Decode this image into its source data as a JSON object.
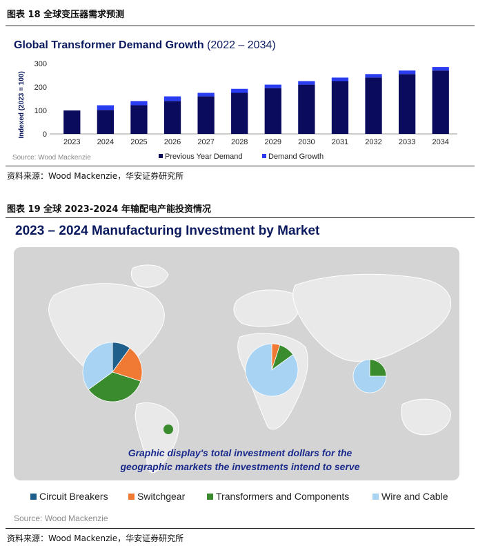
{
  "figure1": {
    "caption": "图表 18 全球变压器需求预测",
    "source": "资料来源：Wood Mackenzie，华安证券研究所"
  },
  "figure2": {
    "caption": "图表 19 全球 2023-2024 年输配电产能投资情况",
    "source": "资料来源：Wood Mackenzie，华安证券研究所"
  },
  "chart_data": [
    {
      "type": "bar",
      "stacked": true,
      "title": "Global Transformer Demand Growth",
      "title_suffix": "(2022 – 2034)",
      "ylabel": "Indexed (2023 = 100)",
      "xlabel": "",
      "ylim": [
        0,
        300
      ],
      "yticks": [
        0,
        100,
        200,
        300
      ],
      "categories": [
        "2023",
        "2024",
        "2025",
        "2026",
        "2027",
        "2028",
        "2029",
        "2030",
        "2031",
        "2032",
        "2033",
        "2034"
      ],
      "series": [
        {
          "name": "Previous Year Demand",
          "color": "#0b0b5e",
          "values": [
            100,
            102,
            122,
            140,
            160,
            175,
            195,
            210,
            225,
            240,
            255,
            270
          ]
        },
        {
          "name": "Demand Growth",
          "color": "#2a3cf0",
          "values": [
            0,
            20,
            18,
            20,
            15,
            17,
            15,
            15,
            15,
            15,
            15,
            15
          ]
        }
      ],
      "source": "Source: Wood Mackenzie",
      "legend_position": "bottom"
    },
    {
      "type": "pie",
      "title": "2023 – 2024 Manufacturing Investment by Market",
      "categories": [
        "Circuit Breakers",
        "Switchgear",
        "Transformers and Components",
        "Wire and Cable"
      ],
      "colors": [
        "#1e5f8c",
        "#f07a33",
        "#3a8a2e",
        "#a9d3f2"
      ],
      "pies": [
        {
          "name": "North America",
          "values": [
            10,
            20,
            35,
            35
          ]
        },
        {
          "name": "Europe",
          "values": [
            0,
            5,
            10,
            85
          ]
        },
        {
          "name": "Asia",
          "values": [
            0,
            0,
            25,
            75
          ]
        },
        {
          "name": "South America",
          "values": [
            0,
            0,
            100,
            0
          ]
        }
      ],
      "annotation_line1": "Graphic display's total investment dollars for the",
      "annotation_line2": "geographic markets the investments intend to serve",
      "source": "Source: Wood Mackenzie",
      "legend_position": "bottom"
    }
  ]
}
